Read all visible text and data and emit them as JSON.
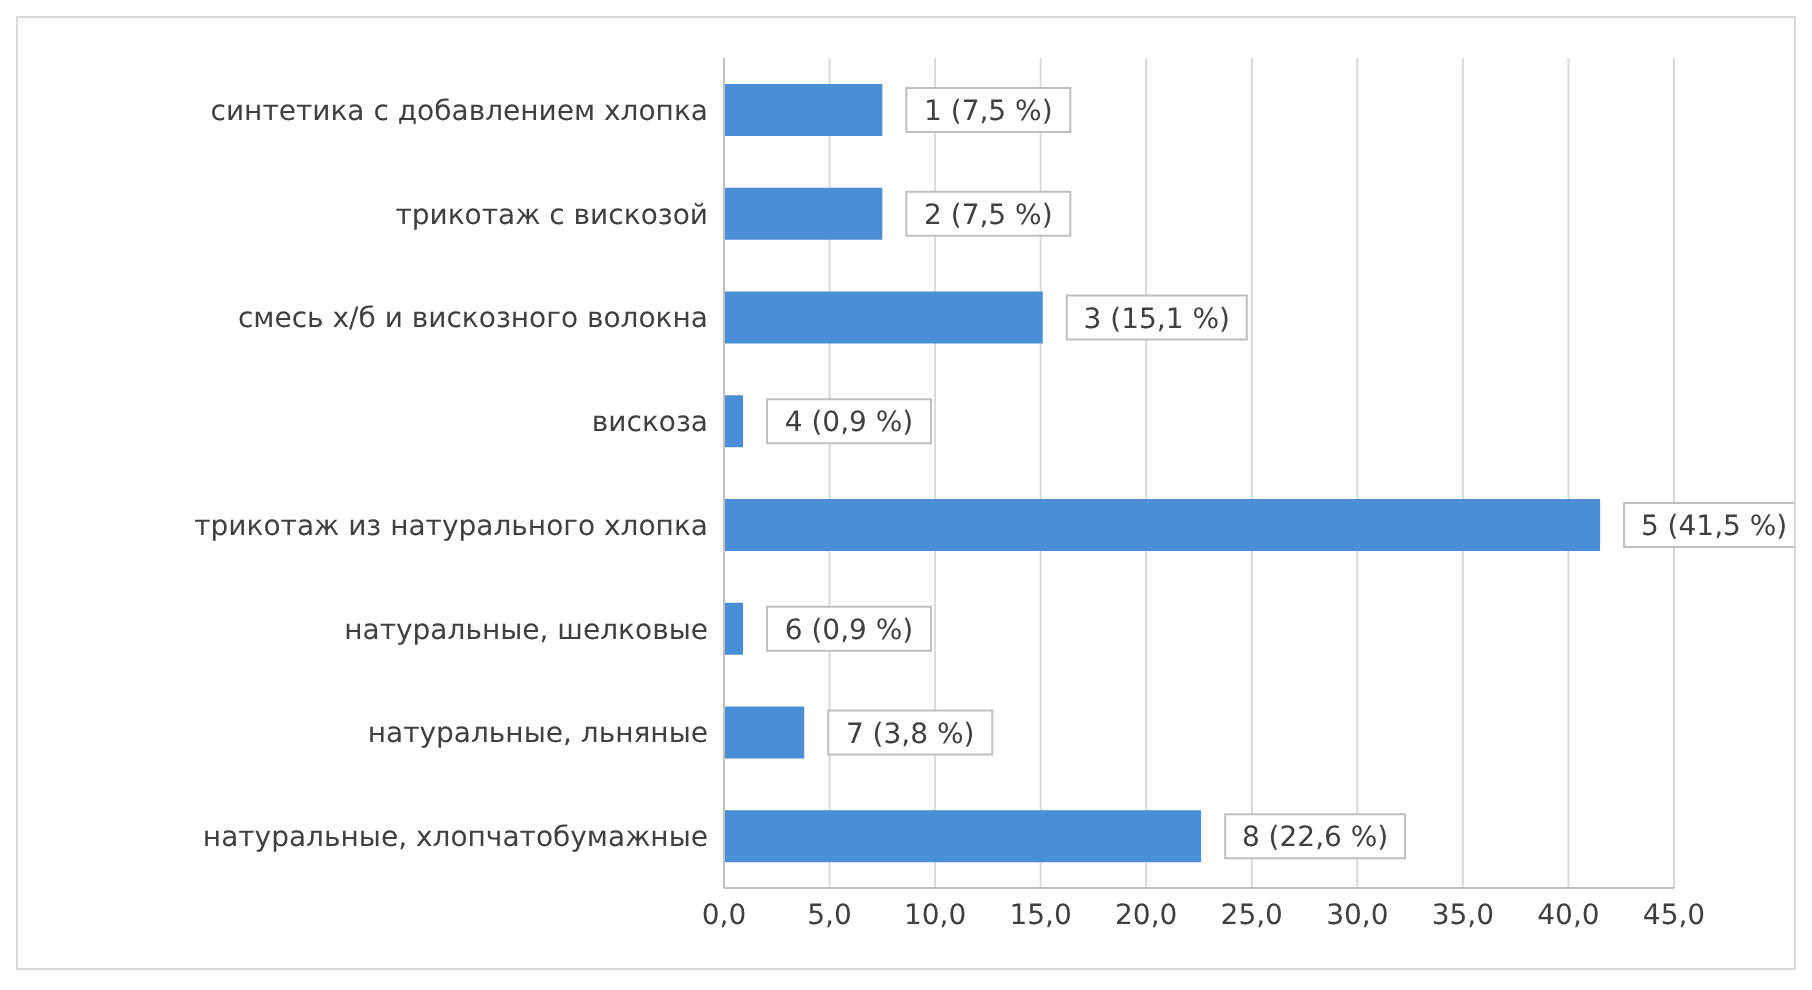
{
  "chart_data": {
    "type": "bar",
    "orientation": "horizontal",
    "categories": [
      "синтетика с добавлением хлопка",
      "трикотаж с вискозой",
      "смесь х/б и вискозного волокна",
      "вискоза",
      "трикотаж из натурального хлопка",
      "натуральные, шелковые",
      "натуральные, льняные",
      "натуральные, хлопчатобумажные"
    ],
    "values": [
      7.5,
      7.5,
      15.1,
      0.9,
      41.5,
      0.9,
      3.8,
      22.6
    ],
    "value_labels": [
      "1 (7,5 %)",
      "2 (7,5 %)",
      "3 (15,1 %)",
      "4 (0,9 %)",
      "5 (41,5 %)",
      "6 (0,9 %)",
      "7 (3,8 %)",
      "8 (22,6 %)"
    ],
    "color": "#4a8fd6",
    "xlim": [
      0,
      45
    ],
    "xticks": [
      {
        "value": 0,
        "label": "0,0"
      },
      {
        "value": 5,
        "label": "5,0"
      },
      {
        "value": 10,
        "label": "10,0"
      },
      {
        "value": 15,
        "label": "15,0"
      },
      {
        "value": 20,
        "label": "20,0"
      },
      {
        "value": 25,
        "label": "25,0"
      },
      {
        "value": 30,
        "label": "30,0"
      },
      {
        "value": 35,
        "label": "35,0"
      },
      {
        "value": 40,
        "label": "40,0"
      },
      {
        "value": 45,
        "label": "45,0"
      }
    ],
    "grid": "x",
    "legend": false
  }
}
